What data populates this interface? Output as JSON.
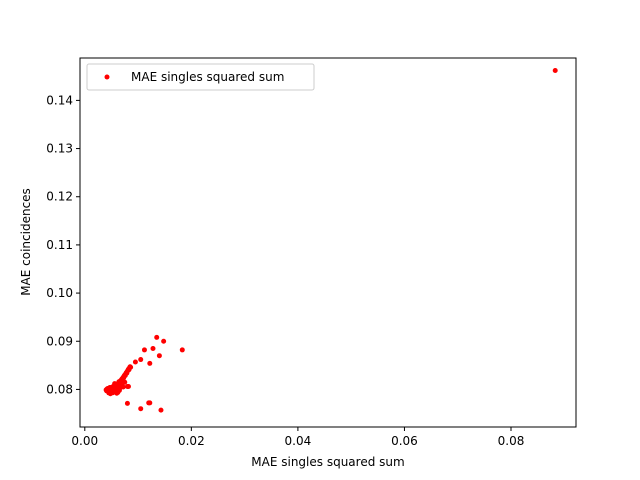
{
  "chart_data": {
    "type": "scatter",
    "title": "",
    "xlabel": "MAE singles squared sum",
    "ylabel": "MAE coincidences",
    "xlim": [
      -0.0009,
      0.0922
    ],
    "ylim": [
      0.0722,
      0.1488
    ],
    "xticks": [
      0.0,
      0.02,
      0.04,
      0.06,
      0.08
    ],
    "xtick_labels": [
      "0.00",
      "0.02",
      "0.04",
      "0.06",
      "0.08"
    ],
    "yticks": [
      0.08,
      0.09,
      0.1,
      0.11,
      0.12,
      0.13,
      0.14
    ],
    "ytick_labels": [
      "0.08",
      "0.09",
      "0.10",
      "0.11",
      "0.12",
      "0.13",
      "0.14"
    ],
    "grid": false,
    "legend_position": "upper-left",
    "color": "#ff0000",
    "series": [
      {
        "name": "MAE singles squared sum",
        "marker": "circle",
        "x": [
          0.004,
          0.0041,
          0.0042,
          0.0043,
          0.0044,
          0.0045,
          0.0046,
          0.0047,
          0.0048,
          0.0049,
          0.005,
          0.0051,
          0.0052,
          0.0053,
          0.0054,
          0.0055,
          0.0056,
          0.0057,
          0.0058,
          0.0059,
          0.006,
          0.0061,
          0.0062,
          0.0063,
          0.0064,
          0.0065,
          0.0066,
          0.0067,
          0.0068,
          0.0069,
          0.007,
          0.0071,
          0.0072,
          0.0073,
          0.0074,
          0.0075,
          0.0076,
          0.0077,
          0.0078,
          0.0079,
          0.008,
          0.0081,
          0.0082,
          0.0083,
          0.0084,
          0.0085,
          0.0086,
          0.0045,
          0.005,
          0.0055,
          0.006,
          0.0065,
          0.0048,
          0.0052,
          0.0058,
          0.0062,
          0.0066,
          0.0043,
          0.0047,
          0.0053,
          0.0057,
          0.0061,
          0.0064,
          0.0068,
          0.0072,
          0.0056,
          0.0059,
          0.007,
          0.0075,
          0.008,
          0.0095,
          0.0105,
          0.0112,
          0.0122,
          0.0128,
          0.0135,
          0.014,
          0.0148,
          0.0183,
          0.012,
          0.0082,
          0.008,
          0.0105,
          0.0122,
          0.0143,
          0.0883
        ],
        "y": [
          0.0799,
          0.0797,
          0.0801,
          0.0798,
          0.0802,
          0.0796,
          0.08,
          0.0803,
          0.0797,
          0.0801,
          0.0804,
          0.0799,
          0.0802,
          0.0806,
          0.08,
          0.0805,
          0.0808,
          0.0803,
          0.0807,
          0.081,
          0.0806,
          0.0811,
          0.0809,
          0.0813,
          0.0812,
          0.0815,
          0.0814,
          0.0818,
          0.0817,
          0.082,
          0.0822,
          0.0821,
          0.0825,
          0.0824,
          0.0828,
          0.083,
          0.0829,
          0.0833,
          0.0835,
          0.0834,
          0.0838,
          0.084,
          0.0842,
          0.0841,
          0.0845,
          0.0847,
          0.0846,
          0.0793,
          0.0794,
          0.0795,
          0.0792,
          0.0798,
          0.0791,
          0.0793,
          0.0796,
          0.0794,
          0.0803,
          0.0802,
          0.0804,
          0.0798,
          0.08,
          0.0808,
          0.0816,
          0.0819,
          0.0805,
          0.0812,
          0.0809,
          0.0808,
          0.0815,
          0.0806,
          0.0857,
          0.0862,
          0.0882,
          0.0854,
          0.0885,
          0.0908,
          0.087,
          0.09,
          0.0882,
          0.0772,
          0.0806,
          0.0771,
          0.076,
          0.0772,
          0.0757,
          0.1462
        ]
      }
    ]
  }
}
